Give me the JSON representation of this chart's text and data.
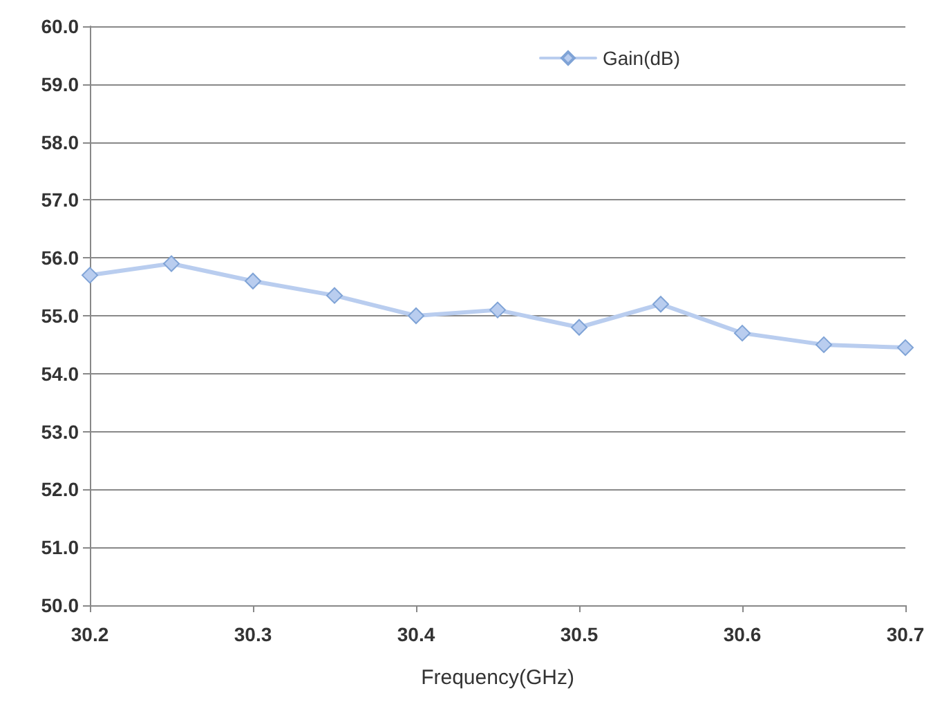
{
  "chart_data": {
    "type": "line",
    "xlabel": "Frequency(GHz)",
    "x": [
      30.2,
      30.25,
      30.3,
      30.35,
      30.4,
      30.45,
      30.5,
      30.55,
      30.6,
      30.65,
      30.7
    ],
    "series": [
      {
        "name": "Gain(dB)",
        "color": "#b9cdef",
        "values": [
          55.7,
          55.9,
          55.6,
          55.35,
          55.0,
          55.1,
          54.8,
          55.2,
          54.7,
          54.5,
          54.45
        ]
      }
    ],
    "xlim": [
      30.2,
      30.7
    ],
    "xticks": [
      30.2,
      30.3,
      30.4,
      30.5,
      30.6,
      30.7
    ],
    "ylim": [
      50,
      60
    ],
    "yticks": [
      {
        "value": 50,
        "label": "50.0"
      },
      {
        "value": 51,
        "label": "51.0"
      },
      {
        "value": 52,
        "label": "52.0"
      },
      {
        "value": 53,
        "label": "53.0"
      },
      {
        "value": 54,
        "label": "54.0"
      },
      {
        "value": 55,
        "label": "55.0"
      },
      {
        "value": 56,
        "label": "56.0"
      },
      {
        "value": 57,
        "label": "57.0"
      },
      {
        "value": 58,
        "label": "58.0"
      },
      {
        "value": 59,
        "label": "59.0"
      },
      {
        "value": 60,
        "label": "60.0"
      }
    ],
    "grid": "y",
    "legend": "top",
    "marker": "diamond",
    "line_style": "solid"
  }
}
